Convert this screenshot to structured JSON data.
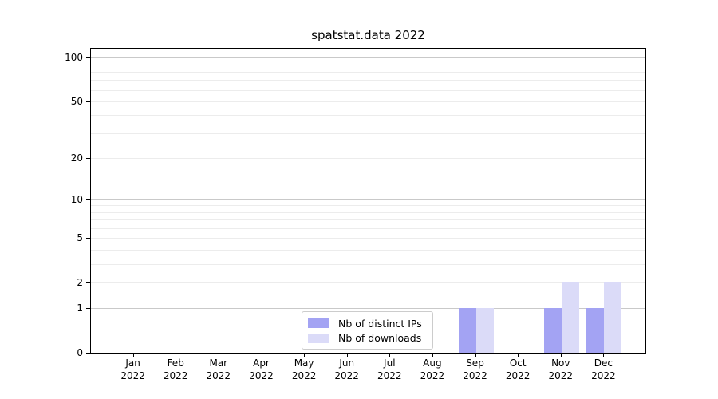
{
  "chart_data": {
    "type": "bar",
    "title": "spatstat.data 2022",
    "categories": [
      {
        "month": "Jan",
        "year": "2022"
      },
      {
        "month": "Feb",
        "year": "2022"
      },
      {
        "month": "Mar",
        "year": "2022"
      },
      {
        "month": "Apr",
        "year": "2022"
      },
      {
        "month": "May",
        "year": "2022"
      },
      {
        "month": "Jun",
        "year": "2022"
      },
      {
        "month": "Jul",
        "year": "2022"
      },
      {
        "month": "Aug",
        "year": "2022"
      },
      {
        "month": "Sep",
        "year": "2022"
      },
      {
        "month": "Oct",
        "year": "2022"
      },
      {
        "month": "Nov",
        "year": "2022"
      },
      {
        "month": "Dec",
        "year": "2022"
      }
    ],
    "series": [
      {
        "name": "Nb of distinct IPs",
        "color": "#a3a3f3",
        "values": [
          0,
          0,
          0,
          0,
          0,
          0,
          0,
          0,
          1,
          0,
          1,
          1
        ]
      },
      {
        "name": "Nb of downloads",
        "color": "#dbdbf8",
        "values": [
          0,
          0,
          0,
          0,
          0,
          0,
          0,
          0,
          1,
          0,
          2,
          2
        ]
      }
    ],
    "xlabel": "",
    "ylabel": "",
    "yscale": "log1p",
    "ylim": [
      0,
      115
    ],
    "ytick_values": [
      0,
      1,
      2,
      5,
      10,
      20,
      50,
      100
    ],
    "major_grid_values": [
      1,
      10,
      100
    ],
    "minor_grid_values": [
      2,
      3,
      4,
      5,
      6,
      7,
      8,
      9,
      20,
      30,
      40,
      50,
      60,
      70,
      80,
      90
    ],
    "grid": true,
    "legend_position": "lower center",
    "colors": {
      "axis": "#000000",
      "major_grid": "#c9c9c9",
      "minor_grid": "#ececec",
      "legend_border": "#cccccc",
      "text": "#000000"
    }
  }
}
